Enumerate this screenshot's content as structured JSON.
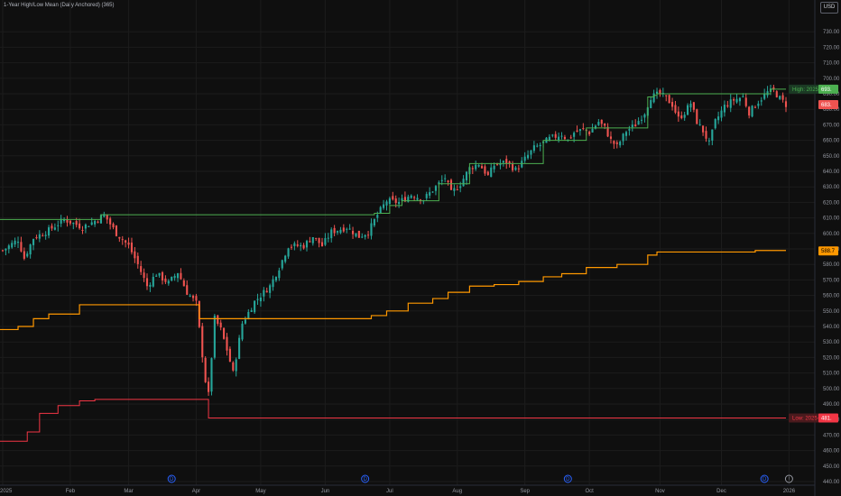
{
  "indicator_title": "1-Year High/Low Mean (Daily Anchored) (365)",
  "currency": "USD",
  "colors": {
    "background": "#0f0f0f",
    "grid": "#1c1c1c",
    "up": "#26a69a",
    "down": "#ef5350",
    "high_line": "#4caf50",
    "mean_line": "#ff9800",
    "low_line": "#f23645"
  },
  "labels": {
    "high_badge": "High: 2025-1",
    "high_price": "693.",
    "low_badge": "Low: 2025-04",
    "low_price": "481.",
    "current_price": "683.",
    "mean_price": "588.7"
  },
  "chart_data": {
    "type": "candlestick",
    "ylim": [
      440,
      740
    ],
    "y_ticks": [
      "730.00",
      "720.00",
      "710.00",
      "700.00",
      "690.00",
      "680.00",
      "670.00",
      "660.00",
      "650.00",
      "640.00",
      "630.00",
      "620.00",
      "610.00",
      "600.00",
      "590.00",
      "580.00",
      "570.00",
      "560.00",
      "550.00",
      "540.00",
      "530.00",
      "520.00",
      "510.00",
      "500.00",
      "490.00",
      "480.00",
      "470.00",
      "460.00",
      "450.00",
      "440.00"
    ],
    "x_ticks": [
      {
        "label": "2025",
        "day": 0
      },
      {
        "label": "Feb",
        "day": 22
      },
      {
        "label": "Mar",
        "day": 41
      },
      {
        "label": "Apr",
        "day": 63
      },
      {
        "label": "May",
        "day": 84
      },
      {
        "label": "Jun",
        "day": 105
      },
      {
        "label": "Jul",
        "day": 126
      },
      {
        "label": "Aug",
        "day": 148
      },
      {
        "label": "Sep",
        "day": 170
      },
      {
        "label": "Oct",
        "day": 191
      },
      {
        "label": "Nov",
        "day": 214
      },
      {
        "label": "Dec",
        "day": 234
      },
      {
        "label": "2026",
        "day": 256
      }
    ],
    "markers": [
      {
        "type": "dividend",
        "label": "D",
        "day": 55
      },
      {
        "type": "dividend",
        "label": "D",
        "day": 118
      },
      {
        "type": "dividend",
        "label": "D",
        "day": 184
      },
      {
        "type": "dividend",
        "label": "D",
        "day": 248
      },
      {
        "type": "earnings",
        "label": "!",
        "day": 256
      }
    ],
    "close_anchors": [
      [
        0,
        589
      ],
      [
        5,
        596
      ],
      [
        7,
        584
      ],
      [
        10,
        597
      ],
      [
        15,
        602
      ],
      [
        20,
        609
      ],
      [
        26,
        604
      ],
      [
        30,
        608
      ],
      [
        33,
        612
      ],
      [
        37,
        600
      ],
      [
        41,
        592
      ],
      [
        44,
        580
      ],
      [
        47,
        566
      ],
      [
        50,
        574
      ],
      [
        54,
        568
      ],
      [
        57,
        575
      ],
      [
        60,
        562
      ],
      [
        63,
        555
      ],
      [
        66,
        505
      ],
      [
        67,
        496
      ],
      [
        69,
        545
      ],
      [
        71,
        538
      ],
      [
        73,
        525
      ],
      [
        75,
        510
      ],
      [
        78,
        542
      ],
      [
        82,
        556
      ],
      [
        84,
        560
      ],
      [
        87,
        566
      ],
      [
        90,
        578
      ],
      [
        93,
        592
      ],
      [
        98,
        592
      ],
      [
        101,
        598
      ],
      [
        104,
        592
      ],
      [
        107,
        601
      ],
      [
        112,
        604
      ],
      [
        116,
        598
      ],
      [
        119,
        601
      ],
      [
        122,
        612
      ],
      [
        125,
        621
      ],
      [
        129,
        620
      ],
      [
        133,
        625
      ],
      [
        137,
        622
      ],
      [
        141,
        630
      ],
      [
        144,
        636
      ],
      [
        146,
        626
      ],
      [
        149,
        632
      ],
      [
        152,
        642
      ],
      [
        155,
        645
      ],
      [
        158,
        637
      ],
      [
        160,
        644
      ],
      [
        164,
        646
      ],
      [
        167,
        641
      ],
      [
        170,
        648
      ],
      [
        173,
        655
      ],
      [
        175,
        657
      ],
      [
        178,
        661
      ],
      [
        182,
        664
      ],
      [
        184,
        660
      ],
      [
        186,
        665
      ],
      [
        189,
        667
      ],
      [
        191,
        665
      ],
      [
        194,
        672
      ],
      [
        196,
        668
      ],
      [
        198,
        660
      ],
      [
        200,
        656
      ],
      [
        203,
        666
      ],
      [
        206,
        670
      ],
      [
        209,
        678
      ],
      [
        211,
        688
      ],
      [
        214,
        690
      ],
      [
        216,
        687
      ],
      [
        218,
        683
      ],
      [
        220,
        674
      ],
      [
        222,
        678
      ],
      [
        224,
        684
      ],
      [
        226,
        672
      ],
      [
        228,
        666
      ],
      [
        230,
        658
      ],
      [
        232,
        672
      ],
      [
        235,
        682
      ],
      [
        238,
        686
      ],
      [
        241,
        688
      ],
      [
        243,
        678
      ],
      [
        246,
        685
      ],
      [
        249,
        691
      ],
      [
        251,
        692
      ],
      [
        253,
        687
      ],
      [
        255,
        683
      ]
    ],
    "ohlc_note": "Daily candles, trading days ~Jan 2 2025 to Jan 1 2026 (day index 0-255); values derived from close_anchors",
    "high_line_steps": [
      [
        0,
        609
      ],
      [
        32,
        612
      ],
      [
        120,
        612
      ],
      [
        121,
        613
      ],
      [
        126,
        618
      ],
      [
        130,
        621
      ],
      [
        142,
        632
      ],
      [
        152,
        645
      ],
      [
        176,
        660
      ],
      [
        190,
        668
      ],
      [
        210,
        688
      ],
      [
        212,
        689
      ],
      [
        213,
        690
      ],
      [
        250,
        693
      ],
      [
        255,
        693
      ]
    ],
    "mean_line_steps": [
      [
        0,
        538
      ],
      [
        5,
        540
      ],
      [
        10,
        545
      ],
      [
        15,
        548
      ],
      [
        25,
        554
      ],
      [
        35,
        554
      ],
      [
        63,
        554
      ],
      [
        64,
        545
      ],
      [
        110,
        545
      ],
      [
        120,
        547
      ],
      [
        125,
        550
      ],
      [
        132,
        555
      ],
      [
        140,
        558
      ],
      [
        145,
        562
      ],
      [
        152,
        566
      ],
      [
        160,
        567
      ],
      [
        168,
        569
      ],
      [
        176,
        572
      ],
      [
        182,
        574
      ],
      [
        190,
        578
      ],
      [
        200,
        580
      ],
      [
        210,
        586
      ],
      [
        213,
        588
      ],
      [
        230,
        588
      ],
      [
        245,
        589
      ],
      [
        255,
        589
      ]
    ],
    "low_line_steps": [
      [
        0,
        466
      ],
      [
        8,
        472
      ],
      [
        12,
        484
      ],
      [
        18,
        489
      ],
      [
        25,
        492
      ],
      [
        30,
        493
      ],
      [
        66,
        493
      ],
      [
        67,
        481
      ],
      [
        255,
        481
      ]
    ]
  }
}
